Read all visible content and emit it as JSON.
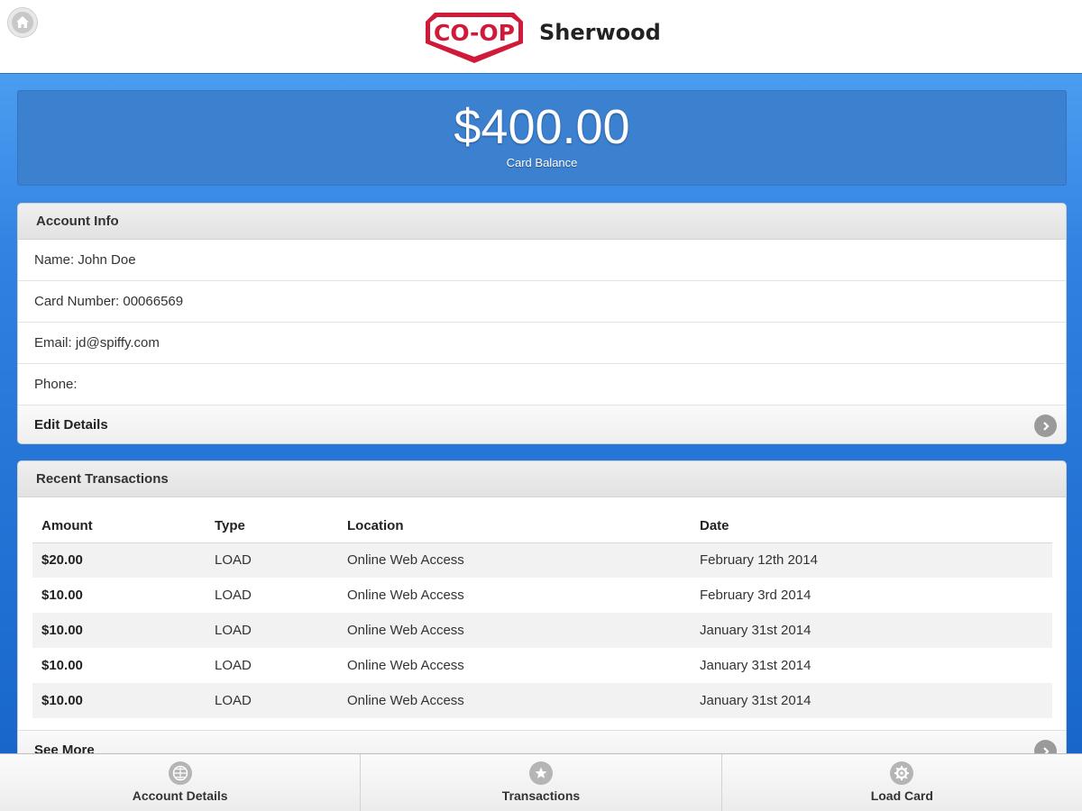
{
  "header": {
    "brand_logo_text": "CO-OP",
    "store_name": "Sherwood"
  },
  "balance": {
    "amount": "$400.00",
    "label": "Card Balance"
  },
  "account_info": {
    "title": "Account Info",
    "name": "Name: John Doe",
    "card_number": "Card Number: 00066569",
    "email": "Email: jd@spiffy.com",
    "phone": "Phone:",
    "edit_label": "Edit Details"
  },
  "transactions": {
    "title": "Recent Transactions",
    "columns": [
      "Amount",
      "Type",
      "Location",
      "Date"
    ],
    "rows": [
      {
        "amount": "$20.00",
        "type": "LOAD",
        "location": "Online Web Access",
        "date": "February 12th 2014"
      },
      {
        "amount": "$10.00",
        "type": "LOAD",
        "location": "Online Web Access",
        "date": "February 3rd 2014"
      },
      {
        "amount": "$10.00",
        "type": "LOAD",
        "location": "Online Web Access",
        "date": "January 31st 2014"
      },
      {
        "amount": "$10.00",
        "type": "LOAD",
        "location": "Online Web Access",
        "date": "January 31st 2014"
      },
      {
        "amount": "$10.00",
        "type": "LOAD",
        "location": "Online Web Access",
        "date": "January 31st 2014"
      }
    ],
    "see_more_label": "See More"
  },
  "nav": {
    "items": [
      {
        "label": "Account Details",
        "icon": "grid-icon"
      },
      {
        "label": "Transactions",
        "icon": "star-icon"
      },
      {
        "label": "Load Card",
        "icon": "gear-icon"
      }
    ]
  },
  "colors": {
    "brand_red": "#d11a3a",
    "balance_blue": "#3c80d0"
  }
}
